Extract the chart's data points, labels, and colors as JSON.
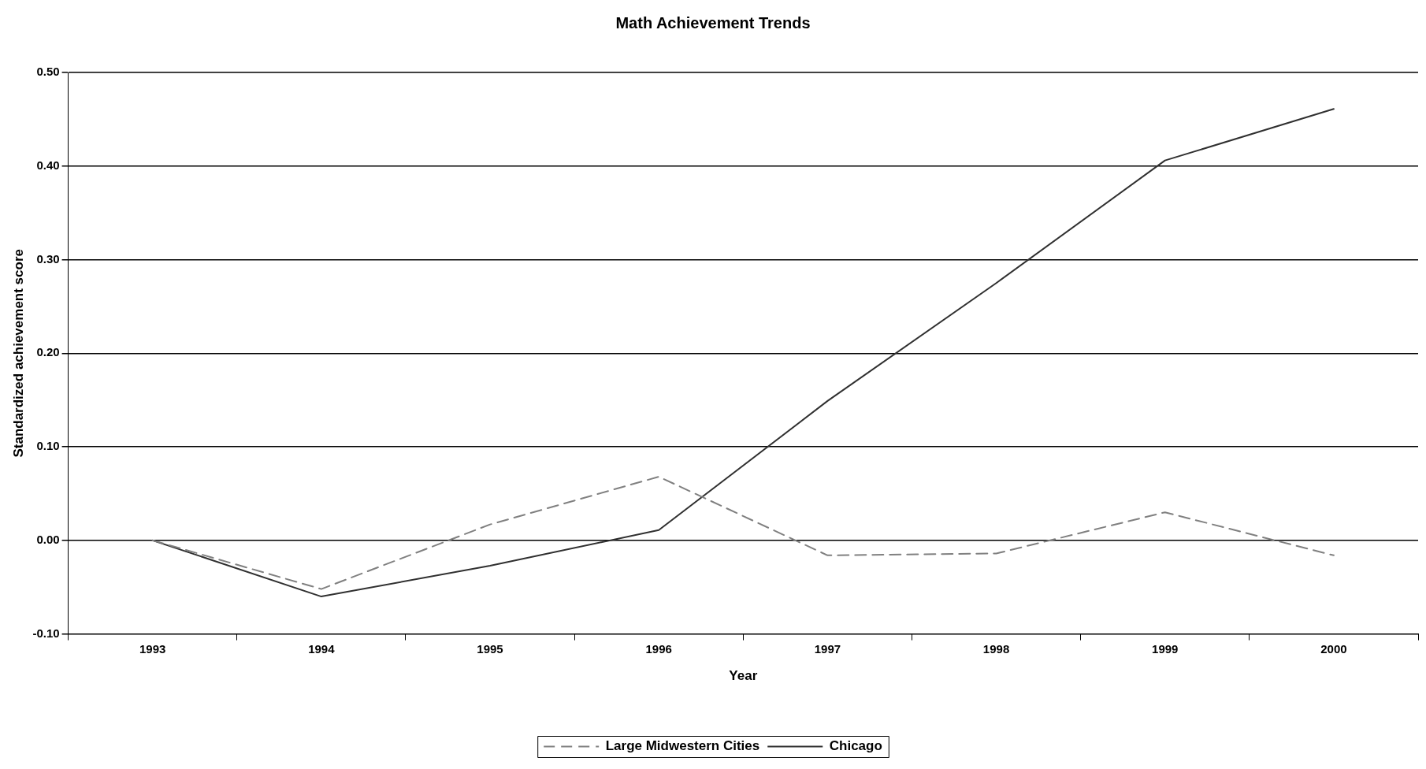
{
  "chart_data": {
    "type": "line",
    "title": "Math Achievement Trends",
    "xlabel": "Year",
    "ylabel": "Standardized achievement score",
    "categories": [
      "1993",
      "1994",
      "1995",
      "1996",
      "1997",
      "1998",
      "1999",
      "2000"
    ],
    "series": [
      {
        "name": "Large Midwestern Cities",
        "color": "#808080",
        "line_style": "dashed",
        "values": [
          0.0,
          -0.052,
          0.017,
          0.068,
          -0.016,
          -0.014,
          0.03,
          -0.016
        ]
      },
      {
        "name": "Chicago",
        "color": "#303030",
        "line_style": "solid",
        "values": [
          0.0,
          -0.06,
          -0.027,
          0.011,
          0.149,
          0.275,
          0.406,
          0.461
        ]
      }
    ],
    "ylim": [
      -0.1,
      0.5
    ],
    "yticks": [
      {
        "value": -0.1,
        "label": "-0.10"
      },
      {
        "value": 0,
        "label": "0.00"
      },
      {
        "value": 0.1,
        "label": "0.10"
      },
      {
        "value": 0.2,
        "label": "0.20"
      },
      {
        "value": 0.3,
        "label": "0.30"
      },
      {
        "value": 0.4,
        "label": "0.40"
      },
      {
        "value": 0.5,
        "label": "0.50"
      }
    ],
    "grid": "y",
    "legend": "bottom",
    "marker": "none"
  }
}
